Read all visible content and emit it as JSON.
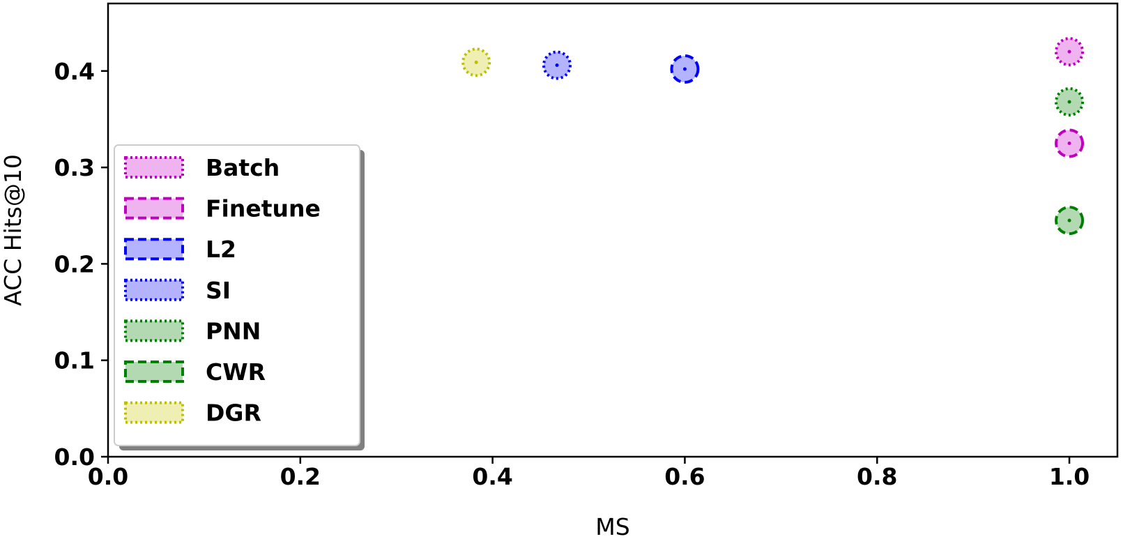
{
  "chart_data": {
    "type": "scatter",
    "xlabel": "MS",
    "ylabel": "ACC Hits@10",
    "xlim": [
      0.0,
      1.05
    ],
    "ylim": [
      0.0,
      0.47
    ],
    "xticks": [
      {
        "value": 0.0,
        "label": "0.0"
      },
      {
        "value": 0.2,
        "label": "0.2"
      },
      {
        "value": 0.4,
        "label": "0.4"
      },
      {
        "value": 0.6,
        "label": "0.6"
      },
      {
        "value": 0.8,
        "label": "0.8"
      },
      {
        "value": 1.0,
        "label": "1.0"
      }
    ],
    "yticks": [
      {
        "value": 0.0,
        "label": "0.0"
      },
      {
        "value": 0.1,
        "label": "0.1"
      },
      {
        "value": 0.2,
        "label": "0.2"
      },
      {
        "value": 0.3,
        "label": "0.3"
      },
      {
        "value": 0.4,
        "label": "0.4"
      }
    ],
    "grid": false,
    "legend_position": "left",
    "series": [
      {
        "name": "Batch",
        "x": 1.0,
        "y": 0.42,
        "edge_color": "#bf00bf",
        "fill_color": "#efb3ef",
        "line_style": "dotted"
      },
      {
        "name": "Finetune",
        "x": 1.0,
        "y": 0.325,
        "edge_color": "#bf00bf",
        "fill_color": "#efb3ef",
        "line_style": "dashed"
      },
      {
        "name": "L2",
        "x": 0.6,
        "y": 0.402,
        "edge_color": "#0000ff",
        "fill_color": "#b3b3ff",
        "line_style": "dashed"
      },
      {
        "name": "SI",
        "x": 0.467,
        "y": 0.406,
        "edge_color": "#0000ff",
        "fill_color": "#b3b3ff",
        "line_style": "dotted"
      },
      {
        "name": "PNN",
        "x": 1.0,
        "y": 0.368,
        "edge_color": "#008000",
        "fill_color": "#b3d9b3",
        "line_style": "dotted"
      },
      {
        "name": "CWR",
        "x": 1.0,
        "y": 0.245,
        "edge_color": "#008000",
        "fill_color": "#b3d9b3",
        "line_style": "dashed"
      },
      {
        "name": "DGR",
        "x": 0.383,
        "y": 0.409,
        "edge_color": "#bfbf00",
        "fill_color": "#efefb3",
        "line_style": "dotted"
      }
    ]
  }
}
